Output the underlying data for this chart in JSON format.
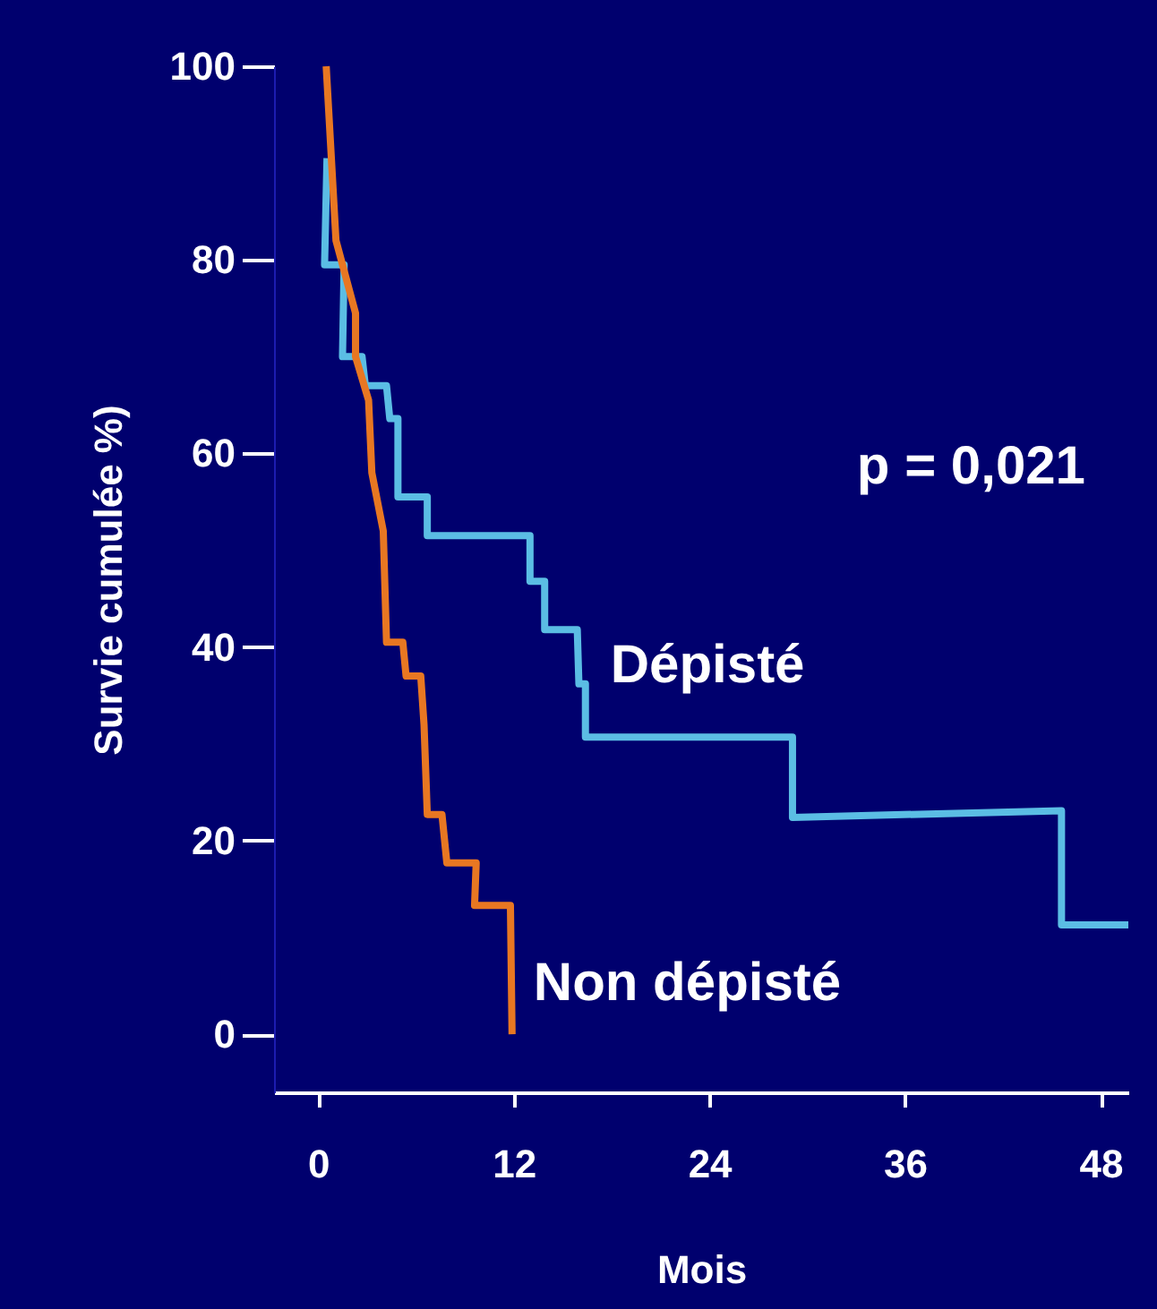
{
  "chart_data": {
    "type": "line",
    "xlabel": "Mois",
    "ylabel": "Survie cumulée %)",
    "xlim": [
      -2.7,
      49.7
    ],
    "xticks": [
      0,
      12,
      24,
      36,
      48
    ],
    "ylim": [
      -6,
      100
    ],
    "yticks": [
      0,
      20,
      40,
      60,
      80,
      100
    ],
    "annotations": [
      "p = 0,021"
    ],
    "series": [
      {
        "name": "Dépisté",
        "color": "#5bbde4",
        "x": [
          0.55,
          0.4,
          1.6,
          1.5,
          2.7,
          2.9,
          4.2,
          4.4,
          4.9,
          4.9,
          6.7,
          6.7,
          13.0,
          13.0,
          13.9,
          13.9,
          15.9,
          16.0,
          16.4,
          16.4,
          29.1,
          29.1,
          45.6,
          45.6,
          49.7
        ],
        "values": [
          90.5,
          79.5,
          79.5,
          70,
          70,
          67,
          67,
          63.6,
          63.6,
          55.5,
          55.5,
          51.5,
          51.5,
          46.8,
          46.8,
          41.8,
          41.8,
          36.2,
          36.2,
          30.7,
          30.7,
          22.4,
          23.1,
          11.3,
          11.3
        ]
      },
      {
        "name": "Non dépisté",
        "color": "#e87722",
        "x": [
          0.5,
          1.1,
          2.3,
          2.3,
          3.1,
          3.3,
          4.0,
          4.2,
          5.2,
          5.4,
          6.3,
          6.5,
          6.7,
          7.6,
          7.9,
          9.7,
          9.6,
          11.8,
          11.9
        ],
        "values": [
          100,
          82,
          74.5,
          70,
          65.5,
          58,
          52,
          40.5,
          40.5,
          37,
          37,
          32,
          22.7,
          22.7,
          17.7,
          17.7,
          13.3,
          13.3,
          0
        ]
      }
    ]
  }
}
